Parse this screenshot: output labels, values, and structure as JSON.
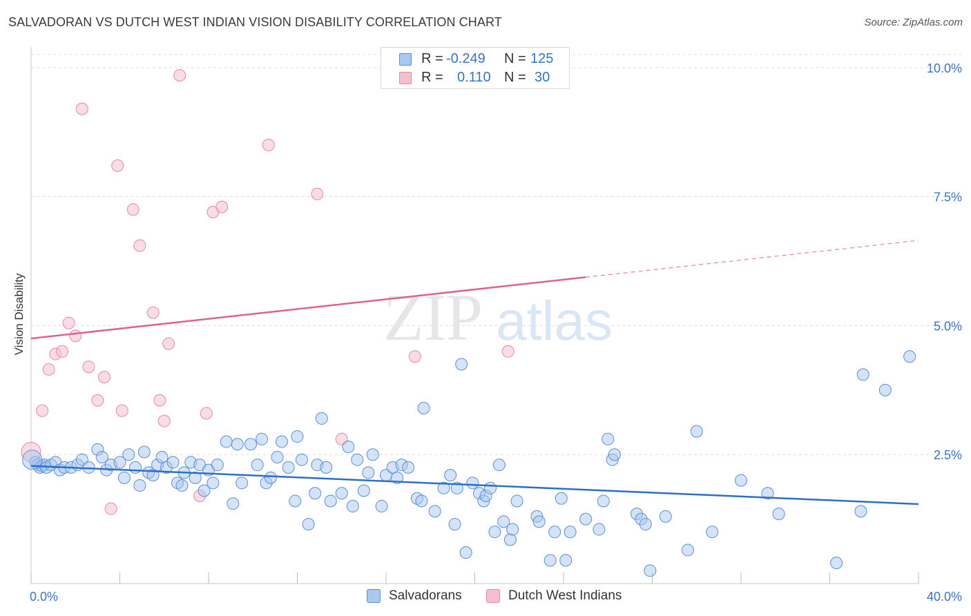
{
  "header": {
    "title": "SALVADORAN VS DUTCH WEST INDIAN VISION DISABILITY CORRELATION CHART",
    "source": "Source: ZipAtlas.com"
  },
  "watermark": {
    "zip": "ZIP",
    "atlas": "atlas"
  },
  "legend_top": {
    "rows": [
      {
        "r_label": "R =",
        "r_value": "-0.249",
        "n_label": "N =",
        "n_value": "125"
      },
      {
        "r_label": "R =",
        "r_value": "0.110",
        "n_label": "N =",
        "n_value": "30"
      }
    ]
  },
  "colors": {
    "salvadorans_fill": "#a9c8ef",
    "salvadorans_stroke": "#5a8fd8",
    "salvadorans_line": "#2a6fcb",
    "dutch_fill": "#f6bfd0",
    "dutch_stroke": "#e58aa6",
    "dutch_line": "#e0628a",
    "tick_label": "#3a73c6"
  },
  "chart_data": {
    "type": "scatter",
    "title": "SALVADORAN VS DUTCH WEST INDIAN VISION DISABILITY CORRELATION CHART",
    "xlabel": "",
    "ylabel": "Vision Disability",
    "xlim": [
      0,
      40
    ],
    "ylim": [
      0,
      10.4
    ],
    "x_tick_labels": [
      "0.0%",
      "40.0%"
    ],
    "y_ticks": [
      {
        "value": 2.5,
        "label": "2.5%"
      },
      {
        "value": 5.0,
        "label": "5.0%"
      },
      {
        "value": 7.5,
        "label": "7.5%"
      },
      {
        "value": 10.0,
        "label": "10.0%"
      }
    ],
    "grid": "horizontal dashed",
    "legend_position": "bottom-center",
    "series": [
      {
        "name": "Salvadorans",
        "R": -0.249,
        "N": 125,
        "trend": {
          "x": [
            0,
            40
          ],
          "y": [
            2.28,
            1.54
          ],
          "solid_until": 40
        },
        "points": [
          [
            0.2,
            2.35
          ],
          [
            0.3,
            2.3
          ],
          [
            0.4,
            2.25
          ],
          [
            0.5,
            2.28
          ],
          [
            0.6,
            2.3
          ],
          [
            0.7,
            2.25
          ],
          [
            0.9,
            2.3
          ],
          [
            1.1,
            2.35
          ],
          [
            1.3,
            2.2
          ],
          [
            1.5,
            2.25
          ],
          [
            1.8,
            2.25
          ],
          [
            2.1,
            2.3
          ],
          [
            2.3,
            2.4
          ],
          [
            2.6,
            2.25
          ],
          [
            3.0,
            2.6
          ],
          [
            3.2,
            2.45
          ],
          [
            3.4,
            2.2
          ],
          [
            3.6,
            2.3
          ],
          [
            4.0,
            2.35
          ],
          [
            4.2,
            2.05
          ],
          [
            4.4,
            2.5
          ],
          [
            4.7,
            2.25
          ],
          [
            4.9,
            1.9
          ],
          [
            5.1,
            2.55
          ],
          [
            5.3,
            2.15
          ],
          [
            5.5,
            2.1
          ],
          [
            5.7,
            2.3
          ],
          [
            5.9,
            2.45
          ],
          [
            6.1,
            2.25
          ],
          [
            6.4,
            2.35
          ],
          [
            6.6,
            1.95
          ],
          [
            6.8,
            1.9
          ],
          [
            6.9,
            2.15
          ],
          [
            7.2,
            2.35
          ],
          [
            7.4,
            2.05
          ],
          [
            7.6,
            2.3
          ],
          [
            7.8,
            1.8
          ],
          [
            8.0,
            2.2
          ],
          [
            8.2,
            1.95
          ],
          [
            8.4,
            2.3
          ],
          [
            8.8,
            2.75
          ],
          [
            9.1,
            1.55
          ],
          [
            9.3,
            2.7
          ],
          [
            9.5,
            1.95
          ],
          [
            9.9,
            2.7
          ],
          [
            10.2,
            2.3
          ],
          [
            10.4,
            2.8
          ],
          [
            10.6,
            1.95
          ],
          [
            10.8,
            2.05
          ],
          [
            11.1,
            2.45
          ],
          [
            11.3,
            2.75
          ],
          [
            11.6,
            2.25
          ],
          [
            11.9,
            1.6
          ],
          [
            12.0,
            2.85
          ],
          [
            12.2,
            2.4
          ],
          [
            12.5,
            1.15
          ],
          [
            12.8,
            1.75
          ],
          [
            12.9,
            2.3
          ],
          [
            13.1,
            3.2
          ],
          [
            13.3,
            2.25
          ],
          [
            13.5,
            1.6
          ],
          [
            14.0,
            1.75
          ],
          [
            14.3,
            2.65
          ],
          [
            14.5,
            1.5
          ],
          [
            14.7,
            2.4
          ],
          [
            15.0,
            1.8
          ],
          [
            15.2,
            2.15
          ],
          [
            15.4,
            2.5
          ],
          [
            15.8,
            1.5
          ],
          [
            16.0,
            2.1
          ],
          [
            16.3,
            2.25
          ],
          [
            16.5,
            2.05
          ],
          [
            16.7,
            2.3
          ],
          [
            17.0,
            2.25
          ],
          [
            17.4,
            1.65
          ],
          [
            17.6,
            1.6
          ],
          [
            17.7,
            3.4
          ],
          [
            18.2,
            1.4
          ],
          [
            18.6,
            1.85
          ],
          [
            18.9,
            2.1
          ],
          [
            19.2,
            1.85
          ],
          [
            19.1,
            1.15
          ],
          [
            19.4,
            4.25
          ],
          [
            19.6,
            0.6
          ],
          [
            19.9,
            1.95
          ],
          [
            20.2,
            1.75
          ],
          [
            20.4,
            1.6
          ],
          [
            20.5,
            1.7
          ],
          [
            20.7,
            1.85
          ],
          [
            20.9,
            1.0
          ],
          [
            21.1,
            2.3
          ],
          [
            21.3,
            1.2
          ],
          [
            21.6,
            0.85
          ],
          [
            21.7,
            1.05
          ],
          [
            21.9,
            1.6
          ],
          [
            22.8,
            1.3
          ],
          [
            22.9,
            1.2
          ],
          [
            23.4,
            0.45
          ],
          [
            23.6,
            1.0
          ],
          [
            23.9,
            1.65
          ],
          [
            24.1,
            0.45
          ],
          [
            24.3,
            1.0
          ],
          [
            25.0,
            1.25
          ],
          [
            25.6,
            1.05
          ],
          [
            25.8,
            1.6
          ],
          [
            26.0,
            2.8
          ],
          [
            26.2,
            2.4
          ],
          [
            26.3,
            2.5
          ],
          [
            27.3,
            1.35
          ],
          [
            27.5,
            1.25
          ],
          [
            27.7,
            1.15
          ],
          [
            27.9,
            0.25
          ],
          [
            28.6,
            1.3
          ],
          [
            29.6,
            0.65
          ],
          [
            30.0,
            2.95
          ],
          [
            30.7,
            1.0
          ],
          [
            32.0,
            2.0
          ],
          [
            33.2,
            1.75
          ],
          [
            33.7,
            1.35
          ],
          [
            36.3,
            0.4
          ],
          [
            37.4,
            1.4
          ],
          [
            37.5,
            4.05
          ],
          [
            38.5,
            3.75
          ],
          [
            39.6,
            4.4
          ],
          [
            0.05,
            2.4
          ]
        ]
      },
      {
        "name": "Dutch West Indians",
        "R": 0.11,
        "N": 30,
        "trend": {
          "x": [
            0,
            40
          ],
          "y": [
            4.75,
            6.65
          ],
          "solid_until": 25
        },
        "points": [
          [
            0.0,
            2.55
          ],
          [
            0.5,
            3.35
          ],
          [
            0.8,
            4.15
          ],
          [
            1.1,
            4.45
          ],
          [
            1.4,
            4.5
          ],
          [
            1.7,
            5.05
          ],
          [
            2.0,
            4.8
          ],
          [
            2.3,
            9.2
          ],
          [
            2.6,
            4.2
          ],
          [
            3.0,
            3.55
          ],
          [
            3.3,
            4.0
          ],
          [
            3.6,
            1.45
          ],
          [
            3.9,
            8.1
          ],
          [
            4.1,
            3.35
          ],
          [
            4.6,
            7.25
          ],
          [
            4.9,
            6.55
          ],
          [
            5.5,
            5.25
          ],
          [
            5.8,
            3.55
          ],
          [
            6.0,
            3.15
          ],
          [
            6.2,
            4.65
          ],
          [
            6.7,
            9.85
          ],
          [
            7.6,
            1.7
          ],
          [
            7.9,
            3.3
          ],
          [
            8.2,
            7.2
          ],
          [
            8.6,
            7.3
          ],
          [
            10.7,
            8.5
          ],
          [
            12.9,
            7.55
          ],
          [
            14.0,
            2.8
          ],
          [
            17.3,
            4.4
          ],
          [
            21.5,
            4.5
          ]
        ]
      }
    ]
  }
}
